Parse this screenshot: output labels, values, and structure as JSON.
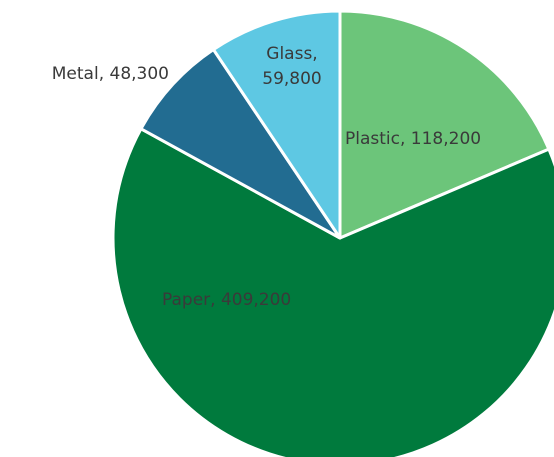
{
  "chart_data": {
    "type": "pie",
    "title": "",
    "slices": [
      {
        "label": "Plastic",
        "value": 118200,
        "value_text": "118,200",
        "color": "#6cc57a"
      },
      {
        "label": "Paper",
        "value": 409200,
        "value_text": "409,200",
        "color": "#007a3d"
      },
      {
        "label": "Metal",
        "value": 48300,
        "value_text": "48,300",
        "color": "#226c91"
      },
      {
        "label": "Glass",
        "value": 59800,
        "value_text": "59,800",
        "color": "#5ec8e3"
      }
    ],
    "start_angle_deg": 0,
    "direction": "clockwise",
    "legend": "none",
    "data_labels": "label, value"
  }
}
